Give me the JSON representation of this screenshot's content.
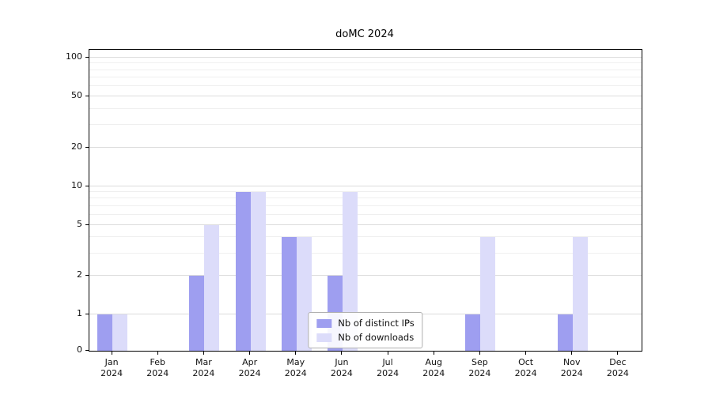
{
  "title": "doMC 2024",
  "chart_data": {
    "type": "bar",
    "title": "doMC 2024",
    "yscale": "log-with-zero",
    "ylim_top": 115,
    "y_ticks": [
      0,
      1,
      2,
      5,
      10,
      20,
      50,
      100
    ],
    "y_minor_ticks": [
      3,
      4,
      6,
      7,
      8,
      9,
      30,
      40,
      60,
      70,
      80,
      90
    ],
    "categories": [
      "Jan 2024",
      "Feb 2024",
      "Mar 2024",
      "Apr 2024",
      "May 2024",
      "Jun 2024",
      "Jul 2024",
      "Aug 2024",
      "Sep 2024",
      "Oct 2024",
      "Nov 2024",
      "Dec 2024"
    ],
    "series": [
      {
        "name": "Nb of distinct IPs",
        "color": "#9e9ef0",
        "values": [
          1,
          0,
          2,
          9,
          4,
          2,
          0,
          0,
          1,
          0,
          1,
          0
        ]
      },
      {
        "name": "Nb of downloads",
        "color": "#dcdcfa",
        "values": [
          1,
          0,
          5,
          9,
          4,
          9,
          0,
          0,
          4,
          0,
          4,
          0
        ]
      }
    ],
    "grid": true,
    "legend_position": "lower center",
    "colors": {
      "grid_major": "#dcdcdc",
      "grid_minor": "#efefef",
      "axis": "#000000",
      "background": "#ffffff"
    }
  }
}
